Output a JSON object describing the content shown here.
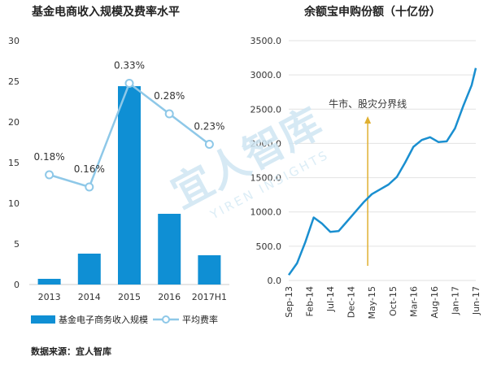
{
  "chart_data": [
    {
      "type": "bar",
      "title": "基金电商收入规模及费率水平",
      "categories": [
        "2013",
        "2014",
        "2015",
        "2016",
        "2017H1"
      ],
      "ylim": [
        0,
        30
      ],
      "yticks": [
        0,
        5,
        10,
        15,
        20,
        25,
        30
      ],
      "grid": false,
      "legend_position": "bottom",
      "series": [
        {
          "name": "基金电子商务收入规模",
          "kind": "bar",
          "color": "#0f8fd4",
          "values": [
            0.7,
            3.8,
            24.4,
            8.7,
            3.6
          ]
        },
        {
          "name": "平均费率",
          "kind": "line",
          "color": "#8ec8e8",
          "axis": "secondary",
          "values": [
            0.18,
            0.16,
            0.33,
            0.28,
            0.23
          ],
          "labels": [
            "0.18%",
            "0.16%",
            "0.33%",
            "0.28%",
            "0.23%"
          ]
        }
      ]
    },
    {
      "type": "line",
      "title": "余额宝申购份额（十亿份）",
      "ylim": [
        0,
        3500
      ],
      "yticks": [
        "0.0",
        "500.0",
        "1000.0",
        "1500.0",
        "2000.0",
        "2500.0",
        "3000.0",
        "3500.0"
      ],
      "xticks": [
        "Sep-13",
        "Feb-14",
        "Jul-14",
        "Dec-14",
        "May-15",
        "Oct-15",
        "Mar-16",
        "Aug-16",
        "Jan-17",
        "Jun-17"
      ],
      "grid": true,
      "color": "#1a8fd0",
      "x": [
        "Sep-13",
        "Nov-13",
        "Jan-14",
        "Mar-14",
        "May-14",
        "Jul-14",
        "Sep-14",
        "Nov-14",
        "Jan-15",
        "Mar-15",
        "May-15",
        "Jul-15",
        "Sep-15",
        "Nov-15",
        "Jan-16",
        "Mar-16",
        "May-16",
        "Jul-16",
        "Sep-16",
        "Nov-16",
        "Jan-17",
        "Mar-17",
        "May-17",
        "Jun-17"
      ],
      "values": [
        80,
        250,
        560,
        920,
        830,
        710,
        720,
        860,
        1000,
        1140,
        1260,
        1330,
        1400,
        1510,
        1720,
        1950,
        2050,
        2090,
        2020,
        2030,
        2220,
        2550,
        2850,
        3100
      ],
      "annotation": {
        "text": "牛市、股灾分界线",
        "x": "Apr-15",
        "color": "#e0b030"
      }
    }
  ],
  "watermark": {
    "brand": "宜人智库",
    "sub": "YIREN INSIGHTS"
  },
  "source_note": "数据来源：宜人智库"
}
